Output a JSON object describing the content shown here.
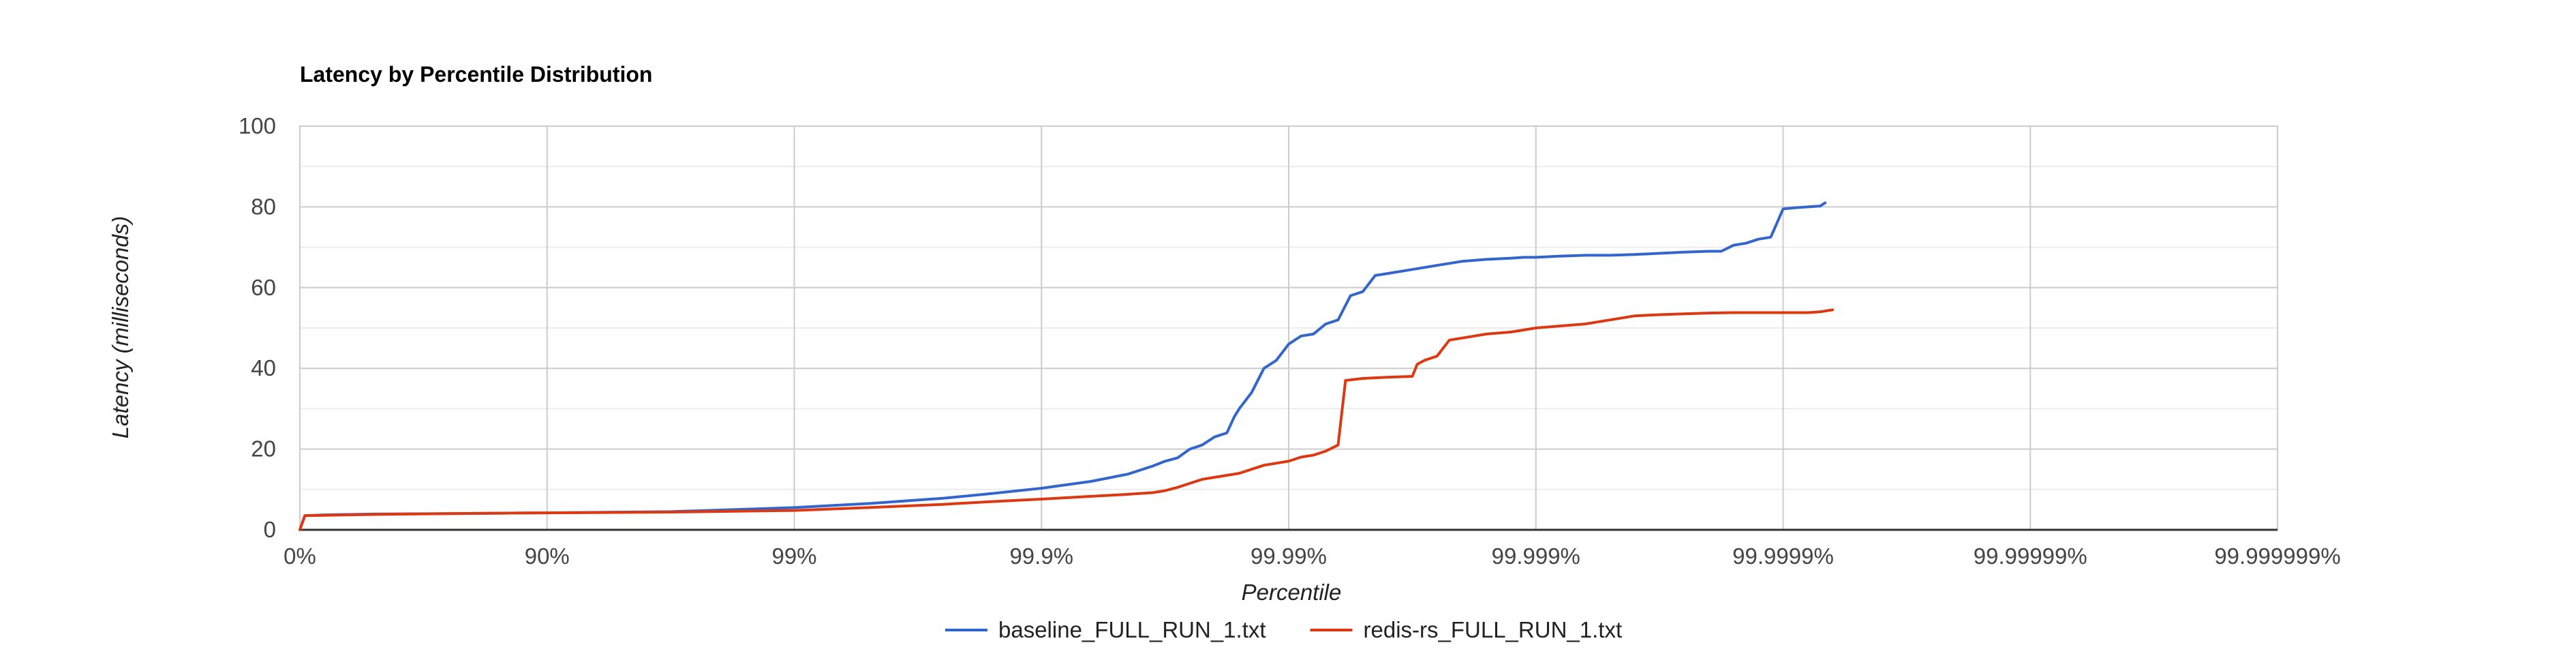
{
  "chart_data": {
    "type": "line",
    "title": "Latency by Percentile Distribution",
    "xlabel": "Percentile",
    "ylabel": "Latency (milliseconds)",
    "x_scale": "log-percentile (x = log10(1 / (1 - p)))",
    "x_ticks": [
      "0%",
      "90%",
      "99%",
      "99.9%",
      "99.99%",
      "99.999%",
      "99.9999%",
      "99.99999%",
      "99.999999%"
    ],
    "y_ticks": [
      "0",
      "20",
      "40",
      "60",
      "80",
      "100"
    ],
    "xlim": [
      0,
      8
    ],
    "ylim": [
      0,
      100
    ],
    "grid": true,
    "minor_grid_y": true,
    "legend_position": "bottom",
    "series": [
      {
        "name": "baseline_FULL_RUN_1.txt",
        "color": "#3366cc",
        "x": [
          0,
          0.02,
          0.1,
          0.3,
          0.6,
          1.0,
          1.5,
          2.0,
          2.3,
          2.6,
          2.8,
          3.0,
          3.2,
          3.35,
          3.45,
          3.5,
          3.55,
          3.6,
          3.65,
          3.7,
          3.75,
          3.78,
          3.8,
          3.85,
          3.9,
          3.95,
          4.0,
          4.05,
          4.1,
          4.15,
          4.2,
          4.25,
          4.3,
          4.35,
          4.4,
          4.5,
          4.6,
          4.65,
          4.7,
          4.8,
          4.9,
          4.95,
          5.0,
          5.1,
          5.2,
          5.3,
          5.4,
          5.5,
          5.6,
          5.7,
          5.75,
          5.8,
          5.85,
          5.9,
          5.95,
          6.0,
          6.05,
          6.1,
          6.15,
          6.17
        ],
        "y": [
          0,
          3.5,
          3.7,
          3.9,
          4.0,
          4.2,
          4.5,
          5.5,
          6.5,
          7.8,
          9.0,
          10.3,
          12.0,
          13.8,
          15.8,
          17.0,
          17.8,
          20.0,
          21.0,
          23.0,
          24.0,
          28.0,
          30.0,
          34.0,
          40.0,
          42.0,
          46.0,
          48.0,
          48.5,
          51.0,
          52.0,
          58.0,
          59.0,
          63.0,
          63.5,
          64.5,
          65.5,
          66.0,
          66.5,
          67.0,
          67.3,
          67.5,
          67.5,
          67.8,
          68.0,
          68.0,
          68.2,
          68.5,
          68.8,
          69.0,
          69.0,
          70.5,
          71.0,
          72.0,
          72.5,
          79.5,
          79.8,
          80.0,
          80.2,
          81.0
        ]
      },
      {
        "name": "redis-rs_FULL_RUN_1.txt",
        "color": "#dc3912",
        "x": [
          0,
          0.02,
          0.1,
          0.3,
          0.6,
          1.0,
          1.5,
          2.0,
          2.3,
          2.6,
          2.8,
          3.0,
          3.2,
          3.35,
          3.45,
          3.5,
          3.55,
          3.6,
          3.65,
          3.7,
          3.8,
          3.85,
          3.9,
          3.95,
          4.0,
          4.05,
          4.1,
          4.15,
          4.2,
          4.23,
          4.3,
          4.4,
          4.5,
          4.52,
          4.55,
          4.6,
          4.65,
          4.8,
          4.9,
          5.0,
          5.1,
          5.2,
          5.3,
          5.4,
          5.5,
          5.6,
          5.7,
          5.8,
          5.9,
          6.0,
          6.1,
          6.15,
          6.2
        ],
        "y": [
          0,
          3.5,
          3.6,
          3.8,
          4.0,
          4.2,
          4.4,
          4.8,
          5.5,
          6.3,
          7.0,
          7.6,
          8.3,
          8.8,
          9.2,
          9.7,
          10.5,
          11.5,
          12.5,
          13.0,
          14.0,
          15.0,
          16.0,
          16.5,
          17.0,
          18.0,
          18.5,
          19.5,
          21.0,
          37.0,
          37.5,
          37.8,
          38.0,
          41.0,
          42.0,
          43.0,
          47.0,
          48.5,
          49.0,
          50.0,
          50.5,
          51.0,
          52.0,
          53.0,
          53.3,
          53.5,
          53.7,
          53.8,
          53.8,
          53.8,
          53.8,
          54.0,
          54.5
        ]
      }
    ]
  }
}
